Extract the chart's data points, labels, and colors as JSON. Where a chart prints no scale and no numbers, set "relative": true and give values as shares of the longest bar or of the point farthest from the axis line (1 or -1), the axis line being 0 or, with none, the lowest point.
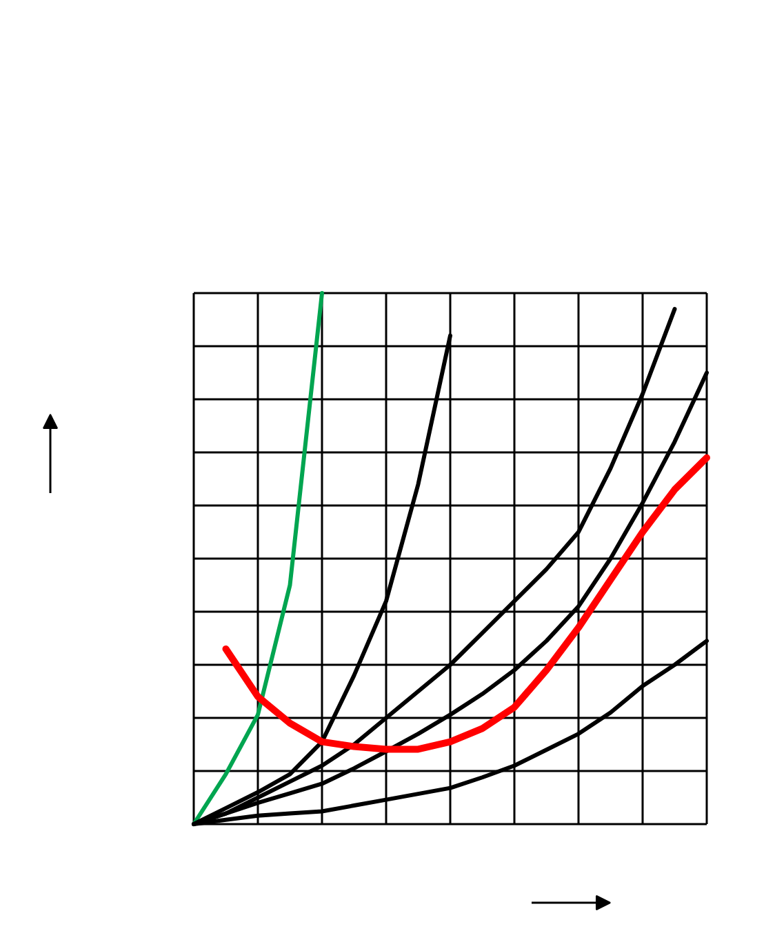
{
  "chart_data": {
    "type": "line",
    "relative": true,
    "grid": true,
    "categories": [
      null,
      null,
      null,
      null,
      null,
      null,
      null,
      null,
      null,
      null,
      null,
      null,
      null,
      null,
      null,
      null,
      null
    ],
    "series": [
      {
        "color": "#00a550",
        "values": [
          0,
          0.094,
          0.206,
          0.45,
          1.0,
          null,
          null,
          null,
          null,
          null,
          null,
          null,
          null,
          null,
          null,
          null,
          null
        ]
      },
      {
        "color": "#000000",
        "values": [
          0,
          0.03,
          0.06,
          0.094,
          0.155,
          0.28,
          0.42,
          0.64,
          0.92,
          null,
          null,
          null,
          null,
          null,
          null,
          null,
          null
        ]
      },
      {
        "color": "#000000",
        "values": [
          0,
          0.02,
          0.05,
          0.08,
          0.11,
          0.15,
          0.2,
          0.25,
          0.3,
          0.36,
          0.42,
          0.48,
          0.55,
          0.67,
          0.81,
          0.97,
          null
        ]
      },
      {
        "color": "#000000",
        "values": [
          0,
          0.02,
          0.04,
          0.058,
          0.076,
          0.105,
          0.137,
          0.17,
          0.206,
          0.245,
          0.29,
          0.345,
          0.41,
          0.5,
          0.605,
          0.72,
          0.85
        ]
      },
      {
        "color": "#ff0000",
        "values": [
          null,
          0.33,
          0.24,
          0.19,
          0.155,
          0.146,
          0.141,
          0.141,
          0.155,
          0.18,
          0.22,
          0.29,
          0.37,
          0.46,
          0.55,
          0.63,
          0.69
        ]
      },
      {
        "color": "#000000",
        "values": [
          0,
          0.008,
          0.016,
          0.02,
          0.024,
          0.035,
          0.046,
          0.057,
          0.068,
          0.088,
          0.11,
          0.14,
          0.17,
          0.21,
          0.26,
          0.3,
          0.345
        ]
      }
    ]
  }
}
